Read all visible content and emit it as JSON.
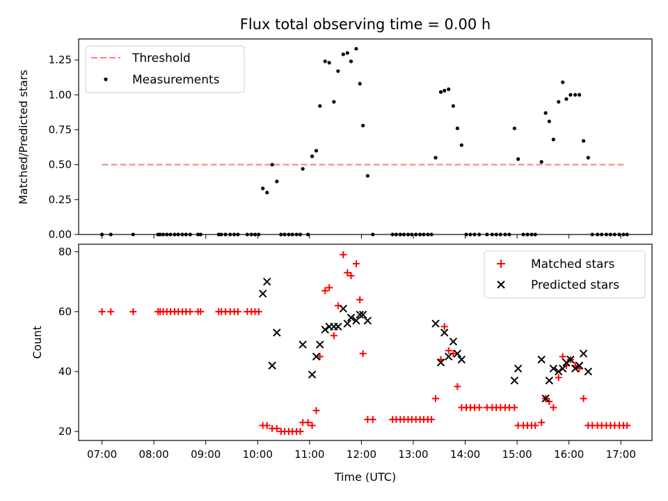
{
  "chart_data": [
    {
      "type": "scatter",
      "title": "Flux total observing time = 0.00 h",
      "xlabel": "",
      "ylabel": "Matched/Predicted stars",
      "xlim": [
        6.55,
        17.6
      ],
      "ylim": [
        0,
        1.4
      ],
      "yticks": [
        0.0,
        0.25,
        0.5,
        0.75,
        1.0,
        1.25
      ],
      "ytick_labels": [
        "0.00",
        "0.25",
        "0.50",
        "0.75",
        "1.00",
        "1.25"
      ],
      "legend_position": "top-left",
      "threshold": {
        "name": "Threshold",
        "value": 0.5,
        "x": [
          7.0,
          17.1
        ],
        "color": "#ff7f7f"
      },
      "series": [
        {
          "name": "Measurements",
          "color": "#000000",
          "x": [
            7.0,
            7.17,
            7.6,
            8.08,
            8.12,
            8.18,
            8.25,
            8.32,
            8.4,
            8.47,
            8.55,
            8.62,
            8.7,
            8.85,
            8.9,
            9.25,
            9.3,
            9.38,
            9.47,
            9.55,
            9.62,
            9.8,
            9.88,
            9.95,
            10.02,
            10.1,
            10.18,
            10.28,
            10.37,
            10.45,
            10.52,
            10.6,
            10.67,
            10.75,
            10.82,
            10.87,
            10.97,
            11.05,
            11.13,
            11.2,
            11.3,
            11.38,
            11.47,
            11.55,
            11.65,
            11.73,
            11.8,
            11.9,
            11.97,
            12.03,
            12.12,
            12.22,
            12.6,
            12.67,
            12.75,
            12.82,
            12.9,
            12.97,
            13.05,
            13.13,
            13.2,
            13.28,
            13.35,
            13.43,
            13.53,
            13.6,
            13.68,
            13.77,
            13.85,
            13.93,
            14.02,
            14.1,
            14.18,
            14.27,
            14.42,
            14.52,
            14.6,
            14.68,
            14.77,
            14.85,
            14.95,
            15.02,
            15.12,
            15.2,
            15.28,
            15.35,
            15.47,
            15.55,
            15.62,
            15.7,
            15.8,
            15.88,
            15.95,
            16.03,
            16.12,
            16.2,
            16.28,
            16.37,
            16.45,
            16.55,
            16.63,
            16.72,
            16.8,
            16.88,
            16.97,
            17.05,
            17.12
          ],
          "y": [
            0.0,
            0.0,
            0.0,
            0.0,
            0.0,
            0.0,
            0.0,
            0.0,
            0.0,
            0.0,
            0.0,
            0.0,
            0.0,
            0.0,
            0.0,
            0.0,
            0.0,
            0.0,
            0.0,
            0.0,
            0.0,
            0.0,
            0.0,
            0.0,
            0.0,
            0.33,
            0.3,
            0.5,
            0.38,
            0.0,
            0.0,
            0.0,
            0.0,
            0.0,
            0.0,
            0.47,
            0.0,
            0.56,
            0.6,
            0.92,
            1.24,
            1.23,
            0.95,
            1.17,
            1.29,
            1.3,
            1.24,
            1.33,
            1.08,
            0.78,
            0.42,
            0.0,
            0.0,
            0.0,
            0.0,
            0.0,
            0.0,
            0.0,
            0.0,
            0.0,
            0.0,
            0.0,
            0.0,
            0.55,
            1.02,
            1.03,
            1.04,
            0.92,
            0.76,
            0.64,
            0.0,
            0.0,
            0.0,
            0.0,
            0.0,
            0.0,
            0.0,
            0.0,
            0.0,
            0.0,
            0.76,
            0.54,
            0.0,
            0.0,
            0.0,
            0.0,
            0.52,
            0.87,
            0.81,
            0.68,
            0.95,
            1.09,
            0.97,
            1.0,
            1.0,
            1.0,
            0.67,
            0.55,
            0.0,
            0.0,
            0.0,
            0.0,
            0.0,
            0.0,
            0.0,
            0.0,
            0.0
          ]
        }
      ]
    },
    {
      "type": "scatter",
      "title": "",
      "xlabel": "Time (UTC)",
      "ylabel": "Count",
      "xlim": [
        6.55,
        17.6
      ],
      "ylim": [
        17,
        82.5
      ],
      "yticks": [
        20,
        40,
        60,
        80
      ],
      "ytick_labels": [
        "20",
        "40",
        "60",
        "80"
      ],
      "xticks": [
        7,
        8,
        9,
        10,
        11,
        12,
        13,
        14,
        15,
        16,
        17
      ],
      "xtick_labels": [
        "07:00",
        "08:00",
        "09:00",
        "10:00",
        "11:00",
        "12:00",
        "13:00",
        "14:00",
        "15:00",
        "16:00",
        "17:00"
      ],
      "legend_position": "top-right",
      "series": [
        {
          "name": "Matched stars",
          "marker": "plus",
          "color": "#ff0000",
          "x": [
            7.0,
            7.17,
            7.6,
            8.08,
            8.12,
            8.18,
            8.25,
            8.32,
            8.4,
            8.47,
            8.55,
            8.62,
            8.7,
            8.85,
            8.9,
            9.25,
            9.3,
            9.38,
            9.47,
            9.55,
            9.62,
            9.8,
            9.88,
            9.95,
            10.02,
            10.1,
            10.18,
            10.28,
            10.37,
            10.45,
            10.52,
            10.6,
            10.67,
            10.75,
            10.82,
            10.87,
            10.97,
            11.05,
            11.13,
            11.2,
            11.3,
            11.38,
            11.47,
            11.55,
            11.65,
            11.73,
            11.8,
            11.9,
            11.97,
            12.03,
            12.12,
            12.22,
            12.6,
            12.67,
            12.75,
            12.82,
            12.9,
            12.97,
            13.05,
            13.13,
            13.2,
            13.28,
            13.35,
            13.43,
            13.53,
            13.6,
            13.68,
            13.77,
            13.85,
            13.93,
            14.02,
            14.1,
            14.18,
            14.27,
            14.42,
            14.52,
            14.6,
            14.68,
            14.77,
            14.85,
            14.95,
            15.02,
            15.12,
            15.2,
            15.28,
            15.35,
            15.47,
            15.55,
            15.62,
            15.7,
            15.8,
            15.88,
            15.95,
            16.03,
            16.12,
            16.2,
            16.28,
            16.37,
            16.45,
            16.55,
            16.63,
            16.72,
            16.8,
            16.88,
            16.97,
            17.05,
            17.12
          ],
          "y": [
            60,
            60,
            60,
            60,
            60,
            60,
            60,
            60,
            60,
            60,
            60,
            60,
            60,
            60,
            60,
            60,
            60,
            60,
            60,
            60,
            60,
            60,
            60,
            60,
            60,
            22,
            22,
            21,
            21,
            20,
            20,
            20,
            20,
            20,
            20,
            23,
            23,
            22,
            27,
            45,
            67,
            68,
            52,
            62,
            79,
            73,
            72,
            76,
            64,
            46,
            24,
            24,
            24,
            24,
            24,
            24,
            24,
            24,
            24,
            24,
            24,
            24,
            24,
            31,
            44,
            55,
            47,
            46,
            35,
            28,
            28,
            28,
            28,
            28,
            28,
            28,
            28,
            28,
            28,
            28,
            28,
            22,
            22,
            22,
            22,
            22,
            23,
            31,
            30,
            28,
            38,
            45,
            42,
            44,
            42,
            41,
            31,
            22,
            22,
            22,
            22,
            22,
            22,
            22,
            22,
            22,
            22
          ]
        },
        {
          "name": "Predicted stars",
          "marker": "x",
          "color": "#000000",
          "x": [
            10.1,
            10.18,
            10.28,
            10.37,
            10.87,
            11.05,
            11.13,
            11.2,
            11.3,
            11.38,
            11.47,
            11.55,
            11.65,
            11.73,
            11.8,
            11.9,
            11.97,
            12.03,
            12.12,
            13.43,
            13.53,
            13.6,
            13.68,
            13.77,
            13.85,
            13.93,
            14.95,
            15.02,
            15.47,
            15.55,
            15.62,
            15.7,
            15.8,
            15.88,
            15.95,
            16.03,
            16.12,
            16.2,
            16.28,
            16.37
          ],
          "y": [
            66,
            70,
            42,
            53,
            49,
            39,
            45,
            49,
            54,
            55,
            55,
            55,
            61,
            56,
            58,
            57,
            59,
            59,
            57,
            56,
            43,
            53,
            45,
            50,
            46,
            44,
            37,
            41,
            44,
            31,
            37,
            41,
            40,
            41,
            43,
            44,
            41,
            42,
            46,
            40
          ]
        }
      ]
    }
  ]
}
